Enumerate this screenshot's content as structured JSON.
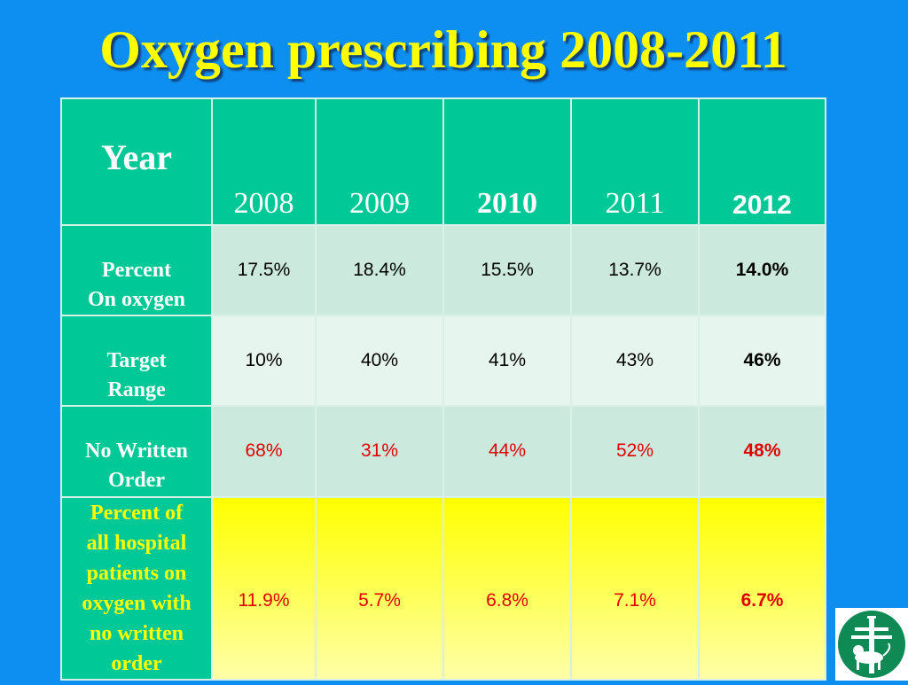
{
  "title": "Oxygen prescribing 2008-2011",
  "table": {
    "header": [
      "Year",
      "2008",
      "2009",
      "2010",
      "2011",
      "2012"
    ],
    "rows": [
      {
        "label": [
          "Percent",
          "On oxygen"
        ],
        "values": [
          "17.5%",
          "18.4%",
          "15.5%",
          "13.7%",
          "14.0%"
        ]
      },
      {
        "label": [
          "Target",
          "Range"
        ],
        "values": [
          "10%",
          "40%",
          "41%",
          "43%",
          "46%"
        ]
      },
      {
        "label": [
          "No Written",
          "Order"
        ],
        "values": [
          "68%",
          "31%",
          "44%",
          "52%",
          "48%"
        ]
      },
      {
        "label": [
          "Percent of",
          "all hospital",
          "patients on",
          "oxygen with",
          "no written",
          "order"
        ],
        "values": [
          "11.9%",
          "5.7%",
          "6.8%",
          "7.1%",
          "6.7%"
        ]
      }
    ]
  },
  "colors": {
    "background": "#0d8ff2",
    "title": "#ffff00",
    "header": "#00c896",
    "highlight_row": "#ffff00",
    "red_text": "#e00000"
  },
  "logo": {
    "icon": "lorraine-cross-lion-emblem"
  }
}
